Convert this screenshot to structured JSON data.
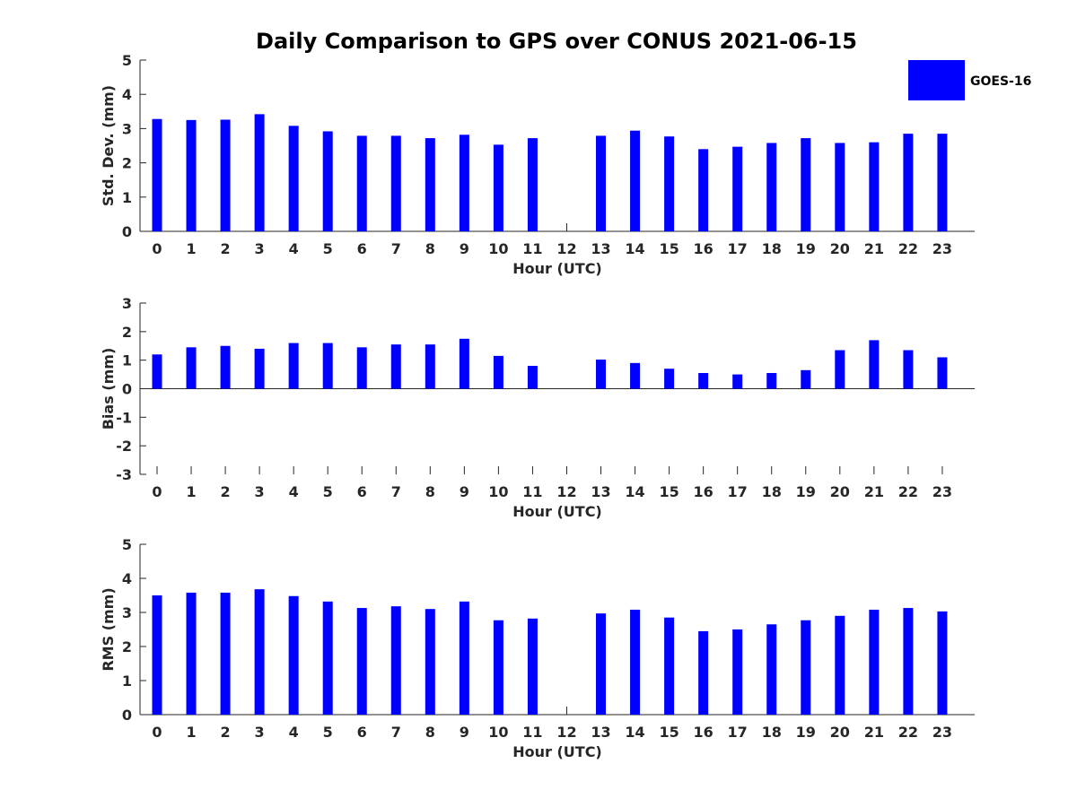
{
  "title": "Daily Comparison to GPS over CONUS 2021-06-15",
  "legend": {
    "label": "GOES-16",
    "color": "#0000ff",
    "placement": "top-right"
  },
  "bar_color": "#0000ff",
  "chart_data": [
    {
      "type": "bar",
      "name": "std_dev",
      "categories": [
        "0",
        "1",
        "2",
        "3",
        "4",
        "5",
        "6",
        "7",
        "8",
        "9",
        "10",
        "11",
        "12",
        "13",
        "14",
        "15",
        "16",
        "17",
        "18",
        "19",
        "20",
        "21",
        "22",
        "23"
      ],
      "values": [
        3.28,
        3.25,
        3.26,
        3.42,
        3.08,
        2.92,
        2.79,
        2.79,
        2.72,
        2.82,
        2.53,
        2.72,
        null,
        2.79,
        2.94,
        2.77,
        2.4,
        2.47,
        2.58,
        2.72,
        2.58,
        2.6,
        2.85,
        2.85
      ],
      "xlabel": "Hour (UTC)",
      "ylabel": "Std. Dev. (mm)",
      "ylim": [
        0,
        5
      ],
      "yticks": [
        "0",
        "1",
        "2",
        "3",
        "4",
        "5"
      ],
      "series": [
        {
          "name": "GOES-16"
        }
      ]
    },
    {
      "type": "bar",
      "name": "bias",
      "categories": [
        "0",
        "1",
        "2",
        "3",
        "4",
        "5",
        "6",
        "7",
        "8",
        "9",
        "10",
        "11",
        "12",
        "13",
        "14",
        "15",
        "16",
        "17",
        "18",
        "19",
        "20",
        "21",
        "22",
        "23"
      ],
      "values": [
        1.2,
        1.45,
        1.5,
        1.4,
        1.6,
        1.6,
        1.45,
        1.55,
        1.55,
        1.75,
        1.15,
        0.8,
        null,
        1.02,
        0.9,
        0.7,
        0.55,
        0.5,
        0.55,
        0.65,
        1.35,
        1.7,
        1.35,
        1.1
      ],
      "xlabel": "Hour (UTC)",
      "ylabel": "Bias (mm)",
      "ylim": [
        -3,
        3
      ],
      "yticks": [
        "-3",
        "-2",
        "-1",
        "0",
        "1",
        "2",
        "3"
      ],
      "series": [
        {
          "name": "GOES-16"
        }
      ]
    },
    {
      "type": "bar",
      "name": "rms",
      "categories": [
        "0",
        "1",
        "2",
        "3",
        "4",
        "5",
        "6",
        "7",
        "8",
        "9",
        "10",
        "11",
        "12",
        "13",
        "14",
        "15",
        "16",
        "17",
        "18",
        "19",
        "20",
        "21",
        "22",
        "23"
      ],
      "values": [
        3.5,
        3.58,
        3.58,
        3.68,
        3.48,
        3.32,
        3.13,
        3.18,
        3.1,
        3.32,
        2.77,
        2.82,
        null,
        2.97,
        3.08,
        2.85,
        2.45,
        2.5,
        2.65,
        2.77,
        2.9,
        3.08,
        3.13,
        3.03
      ],
      "xlabel": "Hour (UTC)",
      "ylabel": "RMS (mm)",
      "ylim": [
        0,
        5
      ],
      "yticks": [
        "0",
        "1",
        "2",
        "3",
        "4",
        "5"
      ],
      "series": [
        {
          "name": "GOES-16"
        }
      ]
    }
  ]
}
